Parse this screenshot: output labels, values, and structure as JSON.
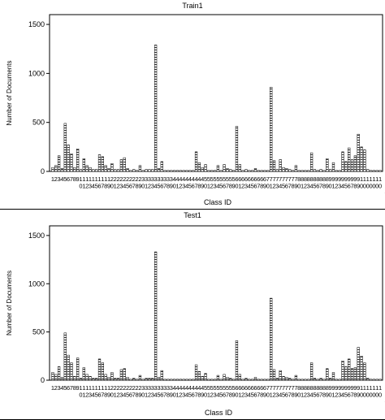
{
  "chart_data": [
    {
      "type": "bar",
      "title": "Train1",
      "xlabel": "Class  ID",
      "ylabel": "Number of Documents",
      "ylim": [
        0,
        1600
      ],
      "yticks": [
        0,
        500,
        1000,
        1500
      ],
      "grid": false,
      "bar_fill": "hatched",
      "categories": [
        "1",
        "2",
        "3",
        "4",
        "5",
        "6",
        "7",
        "8",
        "9",
        "10",
        "11",
        "12",
        "13",
        "14",
        "15",
        "16",
        "17",
        "18",
        "19",
        "20",
        "21",
        "22",
        "23",
        "24",
        "25",
        "26",
        "27",
        "28",
        "29",
        "30",
        "31",
        "32",
        "33",
        "34",
        "35",
        "36",
        "37",
        "38",
        "39",
        "40",
        "41",
        "42",
        "43",
        "44",
        "45",
        "46",
        "47",
        "48",
        "49",
        "50",
        "51",
        "52",
        "53",
        "54",
        "55",
        "56",
        "57",
        "58",
        "59",
        "60",
        "61",
        "62",
        "63",
        "64",
        "65",
        "66",
        "67",
        "68",
        "69",
        "70",
        "71",
        "72",
        "73",
        "74",
        "75",
        "76",
        "77",
        "78",
        "79",
        "80",
        "81",
        "82",
        "83",
        "84",
        "85",
        "86",
        "87",
        "88",
        "89",
        "90",
        "91",
        "92",
        "93",
        "94",
        "95",
        "96",
        "97",
        "98",
        "99",
        "100",
        "101",
        "102",
        "103",
        "104",
        "105",
        "106"
      ],
      "values": [
        40,
        60,
        160,
        30,
        490,
        270,
        180,
        40,
        230,
        20,
        130,
        60,
        40,
        20,
        20,
        170,
        150,
        60,
        30,
        80,
        20,
        20,
        120,
        140,
        30,
        10,
        20,
        10,
        60,
        10,
        20,
        20,
        20,
        1290,
        30,
        100,
        10,
        10,
        10,
        10,
        10,
        10,
        10,
        10,
        10,
        10,
        200,
        90,
        40,
        70,
        10,
        10,
        10,
        60,
        10,
        70,
        30,
        20,
        10,
        460,
        70,
        10,
        20,
        10,
        10,
        30,
        10,
        10,
        10,
        10,
        860,
        110,
        20,
        120,
        40,
        30,
        20,
        10,
        60,
        10,
        10,
        10,
        10,
        190,
        20,
        10,
        20,
        10,
        130,
        20,
        90,
        10,
        10,
        200,
        100,
        240,
        120,
        160,
        380,
        250,
        220,
        20,
        10,
        10,
        10,
        10
      ]
    },
    {
      "type": "bar",
      "title": "Test1",
      "xlabel": "Class  ID",
      "ylabel": "Number of Documents",
      "ylim": [
        0,
        1600
      ],
      "yticks": [
        0,
        500,
        1000,
        1500
      ],
      "grid": false,
      "bar_fill": "hatched",
      "categories": [
        "1",
        "2",
        "3",
        "4",
        "5",
        "6",
        "7",
        "8",
        "9",
        "10",
        "11",
        "12",
        "13",
        "14",
        "15",
        "16",
        "17",
        "18",
        "19",
        "20",
        "21",
        "22",
        "23",
        "24",
        "25",
        "26",
        "27",
        "28",
        "29",
        "30",
        "31",
        "32",
        "33",
        "34",
        "35",
        "36",
        "37",
        "38",
        "39",
        "40",
        "41",
        "42",
        "43",
        "44",
        "45",
        "46",
        "47",
        "48",
        "49",
        "50",
        "51",
        "52",
        "53",
        "54",
        "55",
        "56",
        "57",
        "58",
        "59",
        "60",
        "61",
        "62",
        "63",
        "64",
        "65",
        "66",
        "67",
        "68",
        "69",
        "70",
        "71",
        "72",
        "73",
        "74",
        "75",
        "76",
        "77",
        "78",
        "79",
        "80",
        "81",
        "82",
        "83",
        "84",
        "85",
        "86",
        "87",
        "88",
        "89",
        "90",
        "91",
        "92",
        "93",
        "94",
        "95",
        "96",
        "97",
        "98",
        "99",
        "100",
        "101",
        "102",
        "103",
        "104",
        "105",
        "106"
      ],
      "values": [
        80,
        60,
        140,
        30,
        490,
        260,
        180,
        40,
        230,
        20,
        130,
        60,
        40,
        20,
        20,
        220,
        180,
        60,
        30,
        80,
        20,
        20,
        110,
        120,
        30,
        10,
        20,
        10,
        50,
        10,
        20,
        20,
        20,
        1330,
        30,
        100,
        10,
        10,
        10,
        10,
        10,
        10,
        10,
        10,
        10,
        10,
        160,
        90,
        40,
        70,
        10,
        10,
        10,
        50,
        10,
        60,
        30,
        20,
        10,
        410,
        60,
        10,
        20,
        10,
        10,
        30,
        10,
        10,
        10,
        10,
        850,
        110,
        20,
        100,
        40,
        30,
        20,
        10,
        50,
        10,
        10,
        10,
        10,
        180,
        20,
        10,
        20,
        10,
        120,
        20,
        80,
        10,
        10,
        200,
        140,
        220,
        120,
        130,
        340,
        250,
        180,
        20,
        10,
        10,
        10,
        10
      ]
    }
  ],
  "x_tick_rows": [
    [
      "1",
      "2",
      "3",
      "4",
      "5",
      "6",
      "7",
      "8",
      "9",
      "1",
      "1",
      "1",
      "1",
      "1",
      "1",
      "1",
      "1",
      "1",
      "1",
      "2",
      "2",
      "2",
      "2",
      "2",
      "2",
      "2",
      "2",
      "2",
      "2",
      "3",
      "3",
      "3",
      "3",
      "3",
      "3",
      "3",
      "3",
      "3",
      "3",
      "4",
      "4",
      "4",
      "4",
      "4",
      "4",
      "4",
      "4",
      "4",
      "4",
      "5",
      "5",
      "5",
      "5",
      "5",
      "5",
      "5",
      "5",
      "5",
      "5",
      "6",
      "6",
      "6",
      "6",
      "6",
      "6",
      "6",
      "6",
      "6",
      "6",
      "7",
      "7",
      "7",
      "7",
      "7",
      "7",
      "7",
      "7",
      "7",
      "7",
      "8",
      "8",
      "8",
      "8",
      "8",
      "8",
      "8",
      "8",
      "8",
      "8",
      "9",
      "9",
      "9",
      "9",
      "9",
      "9",
      "9",
      "9",
      "9",
      "9",
      "1",
      "1",
      "1",
      "1",
      "1",
      "1",
      "1"
    ],
    [
      "",
      "",
      "",
      "",
      "",
      "",
      "",
      "",
      "",
      "0",
      "1",
      "2",
      "3",
      "4",
      "5",
      "6",
      "7",
      "8",
      "9",
      "0",
      "1",
      "2",
      "3",
      "4",
      "5",
      "6",
      "7",
      "8",
      "9",
      "0",
      "1",
      "2",
      "3",
      "4",
      "5",
      "6",
      "7",
      "8",
      "9",
      "0",
      "1",
      "2",
      "3",
      "4",
      "5",
      "6",
      "7",
      "8",
      "9",
      "0",
      "1",
      "2",
      "3",
      "4",
      "5",
      "6",
      "7",
      "8",
      "9",
      "0",
      "1",
      "2",
      "3",
      "4",
      "5",
      "6",
      "7",
      "8",
      "9",
      "0",
      "1",
      "2",
      "3",
      "4",
      "5",
      "6",
      "7",
      "8",
      "9",
      "0",
      "1",
      "2",
      "3",
      "4",
      "5",
      "6",
      "7",
      "8",
      "9",
      "0",
      "1",
      "2",
      "3",
      "4",
      "5",
      "6",
      "7",
      "8",
      "9",
      "0",
      "0",
      "0",
      "0",
      "0",
      "0",
      "0"
    ],
    [
      "",
      "",
      "",
      "",
      "",
      "",
      "",
      "",
      "",
      "",
      "",
      "",
      "",
      "",
      "",
      "",
      "",
      "",
      "",
      "",
      "",
      "",
      "",
      "",
      "",
      "",
      "",
      "",
      "",
      "",
      "",
      "",
      "",
      "",
      "",
      "",
      "",
      "",
      "",
      "",
      "",
      "",
      "",
      "",
      "",
      "",
      "",
      "",
      "",
      "",
      "",
      "",
      "",
      "",
      "",
      "",
      "",
      "",
      "",
      "",
      "",
      "",
      "",
      "",
      "",
      "",
      "",
      "",
      "",
      "",
      "",
      "",
      "",
      "",
      "",
      "",
      "",
      "",
      "",
      "",
      "",
      "",
      "",
      "",
      "",
      "",
      "",
      "",
      "",
      "",
      "",
      "",
      "",
      "",
      "",
      "",
      "",
      "",
      "",
      "",
      "",
      "",
      "",
      "",
      "",
      "",
      "",
      "0",
      "1",
      "2",
      "3",
      "4",
      "5",
      "6"
    ]
  ]
}
